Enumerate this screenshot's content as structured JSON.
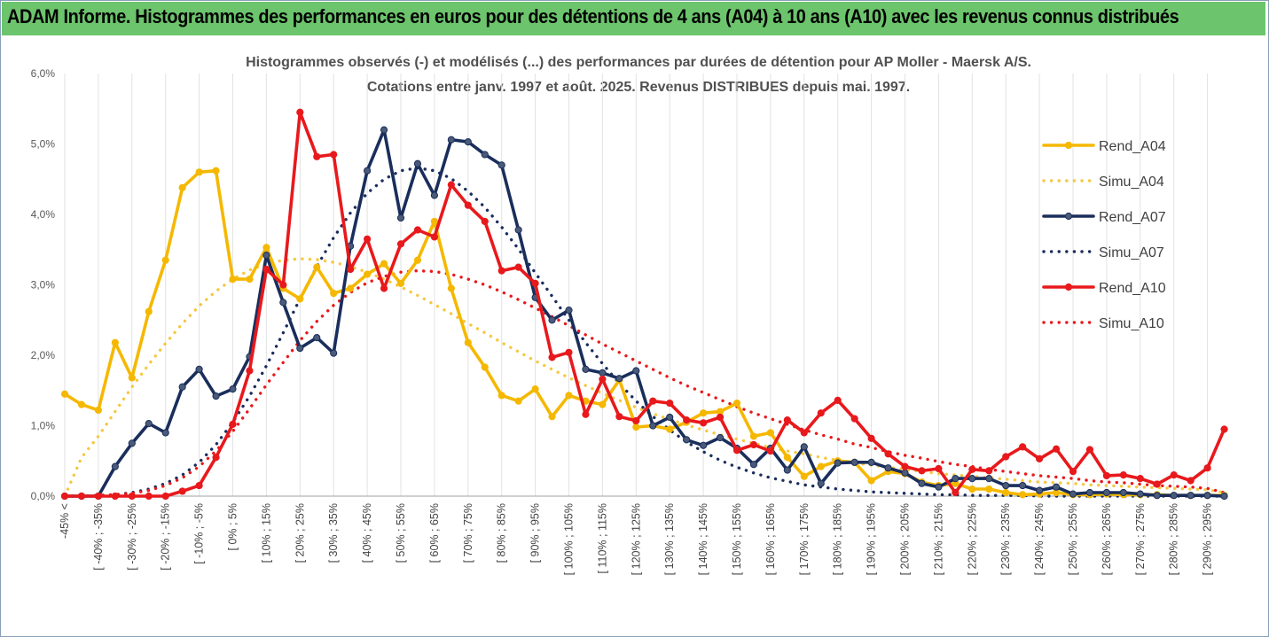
{
  "header": {
    "title": "ADAM Informe. Histogrammes des performances en euros pour des détentions de 4 ans (A04) à 10 ans (A10) avec les revenus connus distribués"
  },
  "chart_data": {
    "type": "line",
    "title": "Histogrammes observés (-) et modélisés (...) des performances par durées de détention pour AP Moller - Maersk A/S.",
    "subtitle": "Cotations entre janv. 1997 et août. 2025. Revenus DISTRIBUES depuis mai. 1997.",
    "xlabel": "",
    "ylabel": "",
    "ylim": [
      0,
      6
    ],
    "yticks": [
      "0,0%",
      "1,0%",
      "2,0%",
      "3,0%",
      "4,0%",
      "5,0%",
      "6,0%"
    ],
    "grid": "vertical",
    "legend_position": "right",
    "categories": [
      "-45% <",
      "[ -45% ; -40%",
      "[ -40% ; -35%",
      "[ -35% ; -30%",
      "[ -30% ; -25%",
      "[ -25% ; -20%",
      "[ -20% ; -15%",
      "[ -15% ; -10%",
      "[ -10% ; -5%",
      "[ -5% ; 0%",
      "[ 0% ; 5%",
      "[ 5% ; 10%",
      "[ 10% ; 15%",
      "[ 15% ; 20%",
      "[ 20% ; 25%",
      "[ 25% ; 30%",
      "[ 30% ; 35%",
      "[ 35% ; 40%",
      "[ 40% ; 45%",
      "[ 45% ; 50%",
      "[ 50% ; 55%",
      "[ 55% ; 60%",
      "[ 60% ; 65%",
      "[ 65% ; 70%",
      "[ 70% ; 75%",
      "[ 75% ; 80%",
      "[ 80% ; 85%",
      "[ 85% ; 90%",
      "[ 90% ; 95%",
      "[ 95% ; 100%",
      "[ 100% ; 105%",
      "[ 105% ; 110%",
      "[ 110% ; 115%",
      "[ 115% ; 120%",
      "[ 120% ; 125%",
      "[ 125% ; 130%",
      "[ 130% ; 135%",
      "[ 135% ; 140%",
      "[ 140% ; 145%",
      "[ 145% ; 150%",
      "[ 150% ; 155%",
      "[ 155% ; 160%",
      "[ 160% ; 165%",
      "[ 165% ; 170%",
      "[ 170% ; 175%",
      "[ 175% ; 180%",
      "[ 180% ; 185%",
      "[ 185% ; 190%",
      "[ 190% ; 195%",
      "[ 195% ; 200%",
      "[ 200% ; 205%",
      "[ 205% ; 210%",
      "[ 210% ; 215%",
      "[ 215% ; 220%",
      "[ 220% ; 225%",
      "[ 225% ; 230%",
      "[ 230% ; 235%",
      "[ 235% ; 240%",
      "[ 240% ; 245%",
      "[ 245% ; 250%",
      "[ 250% ; 255%",
      "[ 255% ; 260%",
      "[ 260% ; 265%",
      "[ 265% ; 270%",
      "[ 270% ; 275%",
      "[ 275% ; 280%",
      "[ 280% ; 285%",
      "[ 285% ; 290%",
      "[ 290% ; 295%",
      "[ 295% ; 300%"
    ],
    "visible_tick_labels": [
      "-45% <",
      "[ -40% ; -35%",
      "[ -30% ; -25%",
      "[ -20% ; -15%",
      "[ -10% ; -5%",
      "[ 0% ; 5%",
      "[ 10% ; 15%",
      "[ 20% ; 25%",
      "[ 30% ; 35%",
      "[ 40% ; 45%",
      "[ 50% ; 55%",
      "[ 60% ; 65%",
      "[ 70% ; 75%",
      "[ 80% ; 85%",
      "[ 90% ; 95%",
      "[ 100% ; 105%",
      "[ 110% ; 115%",
      "[ 120% ; 125%",
      "[ 130% ; 135%",
      "[ 140% ; 145%",
      "[ 150% ; 155%",
      "[ 160% ; 165%",
      "[ 170% ; 175%",
      "[ 180% ; 185%",
      "[ 190% ; 195%",
      "[ 200% ; 205%",
      "[ 210% ; 215%",
      "[ 220% ; 225%",
      "[ 230% ; 235%",
      "[ 240% ; 245%",
      "[ 250% ; 255%",
      "[ 260% ; 265%",
      "[ 270% ; 275%",
      "[ 280% ; 285%",
      "[ 290% ; 295%"
    ],
    "series": [
      {
        "name": "Rend_A04",
        "color": "#f5b800",
        "style": "solid",
        "markers": true,
        "values": [
          1.45,
          1.3,
          1.22,
          2.18,
          1.68,
          2.62,
          3.35,
          4.38,
          4.6,
          4.62,
          3.08,
          3.08,
          3.53,
          2.95,
          2.8,
          3.25,
          2.88,
          2.95,
          3.15,
          3.3,
          3.02,
          3.35,
          3.9,
          2.95,
          2.18,
          1.83,
          1.43,
          1.35,
          1.52,
          1.13,
          1.43,
          1.35,
          1.3,
          1.65,
          0.98,
          1.0,
          0.95,
          1.05,
          1.18,
          1.2,
          1.32,
          0.85,
          0.9,
          0.55,
          0.28,
          0.42,
          0.5,
          0.48,
          0.22,
          0.35,
          0.32,
          0.2,
          0.15,
          0.18,
          0.1,
          0.1,
          0.05,
          0.02,
          0.03,
          0.05,
          0.02,
          0.02,
          0.03,
          0.02,
          0.02,
          0.02,
          0.01,
          0.01,
          0.01,
          0.01
        ]
      },
      {
        "name": "Simu_A04",
        "color": "#f5c842",
        "style": "dotted",
        "markers": false,
        "values": [
          0.0,
          0.55,
          0.85,
          1.2,
          1.55,
          1.87,
          2.17,
          2.45,
          2.7,
          2.91,
          3.08,
          3.21,
          3.3,
          3.35,
          3.37,
          3.36,
          3.32,
          3.26,
          3.18,
          3.08,
          2.97,
          2.85,
          2.72,
          2.59,
          2.45,
          2.32,
          2.18,
          2.05,
          1.92,
          1.8,
          1.68,
          1.57,
          1.46,
          1.36,
          1.26,
          1.17,
          1.09,
          1.01,
          0.94,
          0.87,
          0.81,
          0.75,
          0.69,
          0.64,
          0.6,
          0.55,
          0.51,
          0.47,
          0.44,
          0.41,
          0.38,
          0.35,
          0.32,
          0.3,
          0.28,
          0.26,
          0.24,
          0.22,
          0.2,
          0.19,
          0.18,
          0.16,
          0.15,
          0.14,
          0.13,
          0.12,
          0.11,
          0.1,
          0.09,
          0.05
        ]
      },
      {
        "name": "Rend_A07",
        "color": "#1a2e5c",
        "style": "solid",
        "markers": true,
        "values": [
          0.0,
          0.0,
          0.0,
          0.42,
          0.75,
          1.03,
          0.9,
          1.55,
          1.8,
          1.42,
          1.52,
          1.98,
          3.42,
          2.75,
          2.1,
          2.25,
          2.03,
          3.55,
          4.62,
          5.2,
          3.95,
          4.72,
          4.27,
          5.06,
          5.03,
          4.85,
          4.7,
          3.78,
          2.82,
          2.5,
          2.64,
          1.8,
          1.75,
          1.67,
          1.78,
          1.0,
          1.12,
          0.8,
          0.72,
          0.83,
          0.68,
          0.45,
          0.68,
          0.37,
          0.7,
          0.18,
          0.47,
          0.48,
          0.48,
          0.4,
          0.33,
          0.18,
          0.13,
          0.25,
          0.25,
          0.25,
          0.15,
          0.15,
          0.08,
          0.13,
          0.03,
          0.05,
          0.05,
          0.05,
          0.03,
          0.01,
          0.01,
          0.01,
          0.01,
          0.0
        ]
      },
      {
        "name": "Simu_A07",
        "color": "#1a2e5c",
        "style": "dotted",
        "markers": false,
        "values": [
          0.0,
          0.0,
          0.01,
          0.02,
          0.05,
          0.1,
          0.18,
          0.3,
          0.48,
          0.73,
          1.05,
          1.42,
          1.85,
          2.32,
          2.8,
          3.26,
          3.67,
          4.02,
          4.3,
          4.5,
          4.62,
          4.66,
          4.62,
          4.51,
          4.33,
          4.1,
          3.82,
          3.51,
          3.17,
          2.84,
          2.5,
          2.18,
          1.88,
          1.6,
          1.35,
          1.13,
          0.94,
          0.77,
          0.63,
          0.51,
          0.41,
          0.33,
          0.26,
          0.21,
          0.16,
          0.13,
          0.1,
          0.08,
          0.06,
          0.05,
          0.04,
          0.03,
          0.02,
          0.02,
          0.01,
          0.01,
          0.01,
          0.01,
          0.0,
          0.0,
          0.0,
          0.0,
          0.0,
          0.0,
          0.0,
          0.0,
          0.0,
          0.0,
          0.0,
          0.0
        ]
      },
      {
        "name": "Rend_A10",
        "color": "#e8191c",
        "style": "solid",
        "markers": true,
        "values": [
          0.0,
          0.0,
          0.0,
          0.0,
          0.0,
          0.0,
          0.0,
          0.07,
          0.15,
          0.55,
          1.02,
          1.78,
          3.22,
          3.0,
          5.45,
          4.82,
          4.85,
          3.22,
          3.65,
          2.95,
          3.58,
          3.78,
          3.68,
          4.42,
          4.13,
          3.9,
          3.2,
          3.25,
          3.02,
          1.97,
          2.04,
          1.16,
          1.66,
          1.13,
          1.07,
          1.35,
          1.32,
          1.08,
          1.04,
          1.12,
          0.65,
          0.73,
          0.64,
          1.08,
          0.9,
          1.18,
          1.36,
          1.1,
          0.82,
          0.6,
          0.42,
          0.36,
          0.39,
          0.05,
          0.38,
          0.36,
          0.56,
          0.7,
          0.53,
          0.67,
          0.35,
          0.66,
          0.29,
          0.3,
          0.25,
          0.17,
          0.3,
          0.22,
          0.4,
          0.95
        ]
      },
      {
        "name": "Simu_A10",
        "color": "#e8191c",
        "style": "dotted",
        "markers": false,
        "values": [
          0.0,
          0.0,
          0.01,
          0.02,
          0.04,
          0.08,
          0.15,
          0.26,
          0.42,
          0.64,
          0.92,
          1.24,
          1.58,
          1.9,
          2.21,
          2.48,
          2.71,
          2.89,
          3.03,
          3.12,
          3.18,
          3.2,
          3.19,
          3.15,
          3.08,
          3.0,
          2.9,
          2.79,
          2.67,
          2.55,
          2.42,
          2.29,
          2.16,
          2.04,
          1.92,
          1.8,
          1.68,
          1.57,
          1.47,
          1.37,
          1.27,
          1.18,
          1.1,
          1.02,
          0.94,
          0.87,
          0.81,
          0.74,
          0.69,
          0.63,
          0.58,
          0.54,
          0.49,
          0.45,
          0.42,
          0.38,
          0.35,
          0.32,
          0.29,
          0.27,
          0.25,
          0.22,
          0.2,
          0.19,
          0.17,
          0.15,
          0.14,
          0.13,
          0.11,
          0.05
        ]
      }
    ]
  }
}
